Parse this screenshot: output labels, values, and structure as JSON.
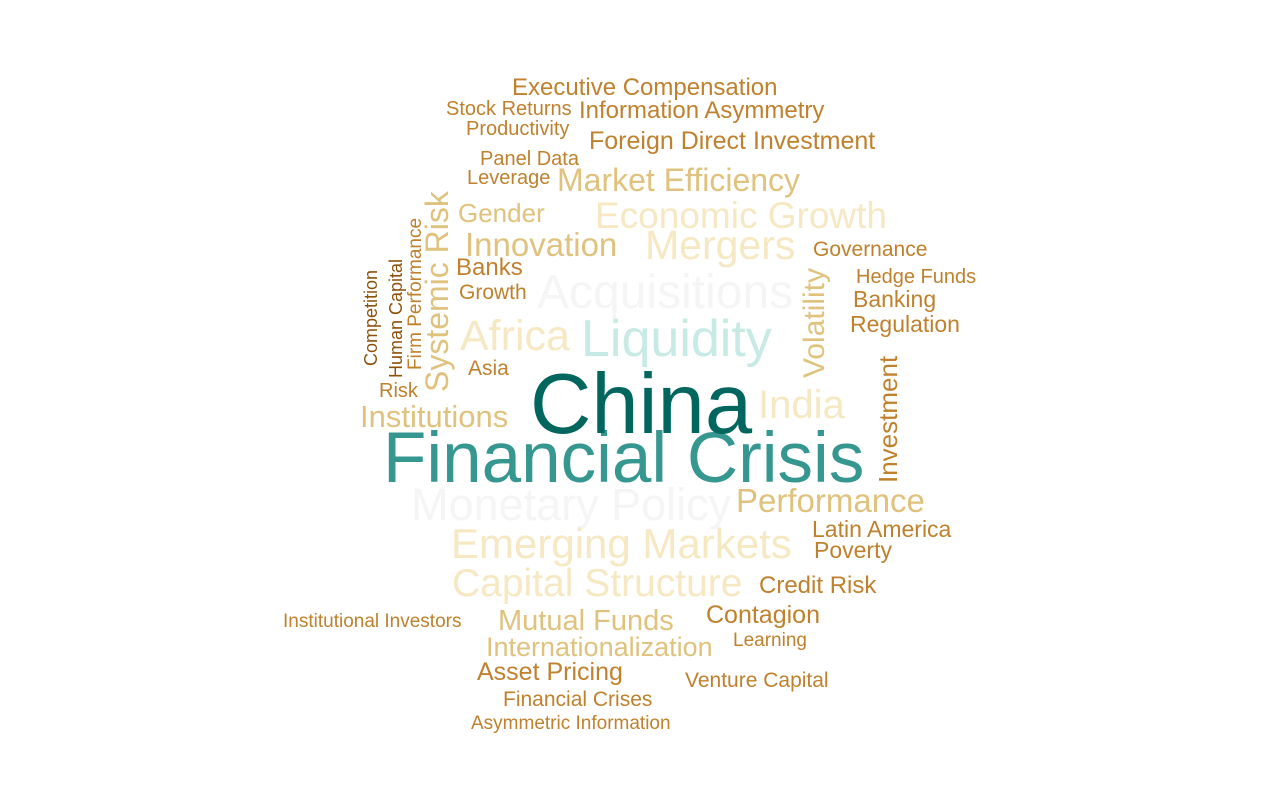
{
  "palette": {
    "dark_teal": "#01665e",
    "teal": "#35978f",
    "light_teal": "#c7eae5",
    "off_white": "#f5f5f5",
    "cream": "#f6e8c3",
    "tan": "#dfc27d",
    "brown": "#bf812d",
    "dark_brown": "#8c510a"
  },
  "words": [
    {
      "text": "Financial Crisis",
      "color": "#35978f"
    },
    {
      "text": "China",
      "color": "#01665e"
    },
    {
      "text": "Monetary Policy",
      "color": "#f5f5f5"
    },
    {
      "text": "Acquisitions",
      "color": "#f5f5f5"
    },
    {
      "text": "Liquidity",
      "color": "#c7eae5"
    },
    {
      "text": "Emerging Markets",
      "color": "#f6e8c3"
    },
    {
      "text": "Capital Structure",
      "color": "#f6e8c3"
    },
    {
      "text": "Mergers",
      "color": "#f6e8c3"
    },
    {
      "text": "Economic Growth",
      "color": "#f6e8c3"
    },
    {
      "text": "Africa",
      "color": "#f6e8c3"
    },
    {
      "text": "India",
      "color": "#f6e8c3"
    },
    {
      "text": "Systemic Risk",
      "color": "#dfc27d"
    },
    {
      "text": "Market Efficiency",
      "color": "#dfc27d"
    },
    {
      "text": "Innovation",
      "color": "#dfc27d"
    },
    {
      "text": "Performance",
      "color": "#dfc27d"
    },
    {
      "text": "Institutions",
      "color": "#dfc27d"
    },
    {
      "text": "Volatility",
      "color": "#dfc27d"
    },
    {
      "text": "Mutual Funds",
      "color": "#dfc27d"
    },
    {
      "text": "Internationalization",
      "color": "#dfc27d"
    },
    {
      "text": "Gender",
      "color": "#dfc27d"
    },
    {
      "text": "Executive Compensation",
      "color": "#bf812d"
    },
    {
      "text": "Information Asymmetry",
      "color": "#bf812d"
    },
    {
      "text": "Foreign Direct Investment",
      "color": "#bf812d"
    },
    {
      "text": "Investment",
      "color": "#bf812d"
    },
    {
      "text": "Contagion",
      "color": "#bf812d"
    },
    {
      "text": "Asset Pricing",
      "color": "#bf812d"
    },
    {
      "text": "Credit Risk",
      "color": "#bf812d"
    },
    {
      "text": "Latin America",
      "color": "#bf812d"
    },
    {
      "text": "Poverty",
      "color": "#bf812d"
    },
    {
      "text": "Regulation",
      "color": "#bf812d"
    },
    {
      "text": "Banking",
      "color": "#bf812d"
    },
    {
      "text": "Banks",
      "color": "#bf812d"
    },
    {
      "text": "Governance",
      "color": "#bf812d"
    },
    {
      "text": "Growth",
      "color": "#bf812d"
    },
    {
      "text": "Asia",
      "color": "#bf812d"
    },
    {
      "text": "Financial Crises",
      "color": "#bf812d"
    },
    {
      "text": "Venture Capital",
      "color": "#bf812d"
    },
    {
      "text": "Panel Data",
      "color": "#bf812d"
    },
    {
      "text": "Leverage",
      "color": "#bf812d"
    },
    {
      "text": "Stock Returns",
      "color": "#bf812d"
    },
    {
      "text": "Productivity",
      "color": "#bf812d"
    },
    {
      "text": "Hedge Funds",
      "color": "#bf812d"
    },
    {
      "text": "Risk",
      "color": "#bf812d"
    },
    {
      "text": "Firm Performance",
      "color": "#bf812d"
    },
    {
      "text": "Institutional Investors",
      "color": "#bf812d"
    },
    {
      "text": "Learning",
      "color": "#bf812d"
    },
    {
      "text": "Asymmetric Information",
      "color": "#bf812d"
    },
    {
      "text": "Human Capital",
      "color": "#8c510a"
    },
    {
      "text": "Competition",
      "color": "#8c510a"
    }
  ]
}
